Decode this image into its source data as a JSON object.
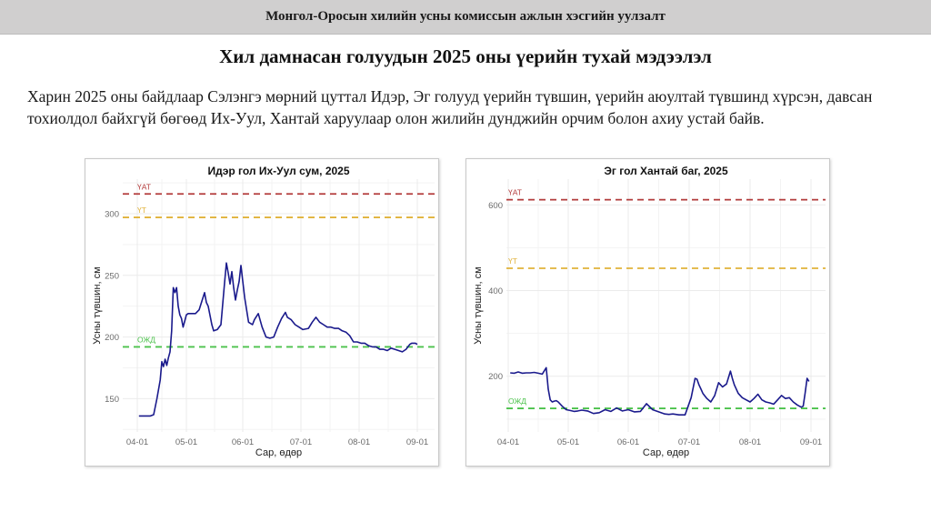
{
  "header": {
    "bar_title": "Монгол-Оросын хилийн усны комиссын ажлын хэсгийн уулзалт",
    "slide_title": "Хил дамнасан голуудын 2025 оны үерийн тухай мэдээлэл",
    "paragraph": "Харин 2025 оны байдлаар Сэлэнгэ мөрний цуттал Идэр, Эг голууд үерийн түвшин, үерийн аюултай түвшинд хүрсэн, давсан тохиолдол байхгүй бөгөөд Их-Уул, Хантай харуулаар олон жилийн дунджийн орчим болон ахиу устай байв."
  },
  "colors": {
    "series": "#1a1a8c",
    "yat": "#b23a3a",
    "yt": "#e0b23a",
    "ozhd": "#4cc24c",
    "grid": "#ebebeb",
    "axis_text": "#6b6b6b"
  },
  "chart_data": [
    {
      "type": "line",
      "title": "Идэр гол Их-Уул сум, 2025",
      "xlabel": "Сар, өдөр",
      "ylabel": "Усны түвшин, см",
      "x_ticks": [
        "04-01",
        "05-01",
        "06-01",
        "07-01",
        "08-01",
        "09-01"
      ],
      "y_ticks": [
        150,
        200,
        250,
        300
      ],
      "ylim": [
        123,
        328
      ],
      "grid": true,
      "reference_lines": [
        {
          "label": "ҮАТ",
          "value": 316,
          "color": "#b23a3a"
        },
        {
          "label": "ҮТ",
          "value": 297,
          "color": "#e0b23a"
        },
        {
          "label": "ОЖД",
          "value": 192,
          "color": "#4cc24c"
        }
      ],
      "series": [
        {
          "name": "Усны түвшин",
          "x_day_of_year_offset_from_04_01": [
            1,
            5,
            8,
            10,
            12,
            14,
            15,
            16,
            17,
            18,
            19,
            20,
            21,
            22,
            23,
            24,
            25,
            26,
            27,
            28,
            29,
            30,
            31,
            33,
            35,
            37,
            40,
            41,
            42,
            44,
            45,
            47,
            49,
            51,
            52,
            53,
            54,
            55,
            56,
            57,
            58,
            59,
            60,
            62,
            64,
            66,
            67,
            69,
            71,
            73,
            75,
            77,
            79,
            81,
            83,
            84,
            86,
            88,
            90,
            92,
            95,
            97,
            99,
            101,
            103,
            105,
            107,
            109,
            111,
            113,
            115,
            117,
            119,
            121,
            123,
            125,
            127,
            129,
            131,
            133,
            135,
            137,
            139,
            141,
            143,
            145,
            147,
            149,
            150,
            151,
            152,
            153,
            154
          ],
          "values": [
            136,
            136,
            136,
            137,
            150,
            165,
            180,
            176,
            182,
            177,
            183,
            188,
            205,
            240,
            236,
            240,
            225,
            218,
            215,
            208,
            213,
            218,
            219,
            219,
            219,
            222,
            236,
            228,
            225,
            210,
            205,
            206,
            210,
            244,
            260,
            252,
            243,
            253,
            240,
            230,
            238,
            245,
            258,
            232,
            212,
            210,
            214,
            219,
            208,
            200,
            199,
            200,
            208,
            215,
            220,
            216,
            214,
            210,
            208,
            206,
            207,
            212,
            216,
            212,
            210,
            208,
            208,
            207,
            207,
            205,
            204,
            201,
            196,
            196,
            195,
            195,
            193,
            192,
            192,
            190,
            190,
            189,
            191,
            190,
            189,
            188,
            190,
            194,
            195,
            195,
            195,
            194,
            194
          ]
        }
      ]
    },
    {
      "type": "line",
      "title": "Эг гол Хантай баг, 2025",
      "xlabel": "Сар, өдөр",
      "ylabel": "Усны түвшин, см",
      "x_ticks": [
        "04-01",
        "05-01",
        "06-01",
        "07-01",
        "08-01",
        "09-01"
      ],
      "y_ticks": [
        200,
        400,
        600
      ],
      "ylim": [
        70,
        660
      ],
      "grid": true,
      "reference_lines": [
        {
          "label": "ҮАТ",
          "value": 612,
          "color": "#b23a3a"
        },
        {
          "label": "ҮТ",
          "value": 452,
          "color": "#e0b23a"
        },
        {
          "label": "ОЖД",
          "value": 125,
          "color": "#4cc24c"
        }
      ],
      "series": [
        {
          "name": "Усны түвшин",
          "x_day_of_year_offset_from_04_01": [
            1,
            3,
            5,
            7,
            9,
            11,
            13,
            15,
            17,
            19,
            20,
            21,
            22,
            23,
            24,
            25,
            27,
            29,
            31,
            33,
            35,
            37,
            40,
            43,
            46,
            49,
            52,
            55,
            58,
            61,
            64,
            67,
            70,
            73,
            76,
            79,
            81,
            83,
            86,
            89,
            92,
            94,
            95,
            96,
            97,
            98,
            100,
            102,
            104,
            106,
            108,
            110,
            112,
            113,
            114,
            116,
            118,
            120,
            122,
            124,
            126,
            128,
            130,
            132,
            134,
            136,
            138,
            140,
            142,
            144,
            146,
            148,
            149,
            150,
            151,
            152
          ],
          "values": [
            208,
            207,
            210,
            207,
            208,
            208,
            209,
            207,
            205,
            220,
            170,
            145,
            140,
            142,
            143,
            140,
            130,
            122,
            120,
            118,
            119,
            121,
            119,
            113,
            115,
            122,
            118,
            126,
            119,
            122,
            117,
            118,
            136,
            122,
            117,
            112,
            111,
            112,
            110,
            110,
            150,
            195,
            193,
            180,
            170,
            160,
            148,
            140,
            155,
            185,
            175,
            182,
            212,
            195,
            180,
            160,
            150,
            145,
            140,
            148,
            158,
            145,
            140,
            138,
            135,
            145,
            155,
            148,
            150,
            140,
            133,
            128,
            130,
            160,
            195,
            188
          ]
        }
      ]
    }
  ]
}
